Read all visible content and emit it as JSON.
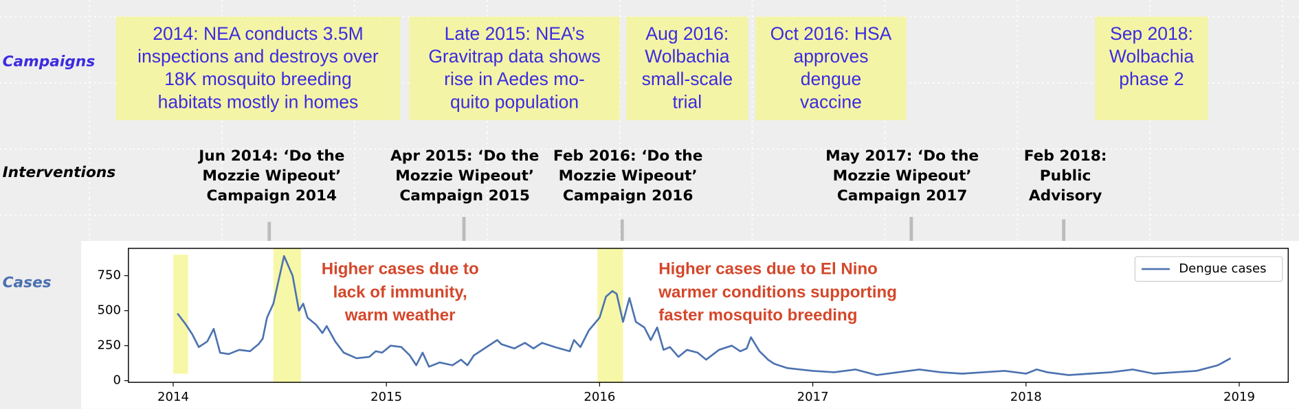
{
  "row_labels": {
    "campaigns": "Campaigns",
    "interventions": "Interventions",
    "cases": "Cases"
  },
  "campaigns": [
    {
      "lines": [
        "2014: NEA conducts 3.5M",
        "inspections and destroys over",
        "18K mosquito breeding",
        "habitats mostly in homes"
      ]
    },
    {
      "lines": [
        "Late 2015: NEA’s",
        "Gravitrap data shows",
        "rise in Aedes mo-",
        "quito population"
      ]
    },
    {
      "lines": [
        "Aug 2016:",
        "Wolbachia",
        "small-scale",
        "trial"
      ]
    },
    {
      "lines": [
        "Oct 2016: HSA",
        "approves",
        "dengue",
        "vaccine"
      ]
    },
    {
      "lines": [
        "Sep 2018:",
        "Wolbachia",
        "phase 2"
      ]
    }
  ],
  "interventions": [
    {
      "lines": [
        "Jun 2014: ‘Do the",
        "Mozzie Wipeout’",
        "Campaign 2014"
      ]
    },
    {
      "lines": [
        "Apr 2015: ‘Do the",
        "Mozzie Wipeout’",
        "Campaign 2015"
      ]
    },
    {
      "lines": [
        "Feb 2016: ‘Do the",
        "Mozzie Wipeout’",
        "Campaign 2016"
      ]
    },
    {
      "lines": [
        "May 2017: ‘Do the",
        "Mozzie Wipeout’",
        "Campaign 2017"
      ]
    },
    {
      "lines": [
        "Feb 2018:",
        "Public",
        "Advisory"
      ]
    }
  ],
  "chart_data": {
    "type": "line",
    "x": [
      2014.02,
      2014.06,
      2014.09,
      2014.12,
      2014.16,
      2014.19,
      2014.22,
      2014.26,
      2014.31,
      2014.36,
      2014.4,
      2014.42,
      2014.44,
      2014.47,
      2014.52,
      2014.56,
      2014.59,
      2014.61,
      2014.63,
      2014.67,
      2014.7,
      2014.72,
      2014.76,
      2014.8,
      2014.86,
      2014.92,
      2014.95,
      2014.98,
      2015.02,
      2015.07,
      2015.11,
      2015.14,
      2015.17,
      2015.2,
      2015.25,
      2015.31,
      2015.35,
      2015.38,
      2015.41,
      2015.46,
      2015.52,
      2015.54,
      2015.6,
      2015.65,
      2015.69,
      2015.73,
      2015.79,
      2015.86,
      2015.88,
      2015.91,
      2015.95,
      2016.0,
      2016.03,
      2016.06,
      2016.08,
      2016.11,
      2016.14,
      2016.17,
      2016.21,
      2016.24,
      2016.27,
      2016.3,
      2016.33,
      2016.37,
      2016.41,
      2016.46,
      2016.5,
      2016.56,
      2016.62,
      2016.66,
      2016.69,
      2016.71,
      2016.75,
      2016.79,
      2016.82,
      2016.88,
      2016.94,
      2017.0,
      2017.1,
      2017.2,
      2017.3,
      2017.4,
      2017.5,
      2017.6,
      2017.7,
      2017.8,
      2017.9,
      2018.0,
      2018.05,
      2018.1,
      2018.2,
      2018.3,
      2018.4,
      2018.5,
      2018.6,
      2018.7,
      2018.8,
      2018.9,
      2018.96
    ],
    "series": [
      {
        "name": "Dengue cases",
        "color": "#4c72b0",
        "values": [
          480,
          400,
          330,
          240,
          280,
          370,
          200,
          190,
          220,
          210,
          260,
          300,
          450,
          550,
          890,
          750,
          500,
          550,
          450,
          400,
          340,
          390,
          280,
          200,
          160,
          170,
          210,
          200,
          250,
          240,
          180,
          110,
          200,
          100,
          130,
          110,
          150,
          110,
          180,
          230,
          290,
          260,
          230,
          270,
          230,
          270,
          240,
          210,
          290,
          240,
          360,
          450,
          600,
          640,
          620,
          420,
          590,
          420,
          380,
          290,
          380,
          220,
          240,
          170,
          220,
          200,
          150,
          220,
          250,
          210,
          230,
          310,
          210,
          150,
          120,
          90,
          80,
          70,
          60,
          80,
          40,
          60,
          80,
          60,
          50,
          60,
          70,
          50,
          80,
          60,
          40,
          50,
          60,
          80,
          50,
          60,
          70,
          110,
          160
        ]
      }
    ],
    "xlim": [
      2013.79,
      2019.23
    ],
    "ylim": [
      -12,
      945
    ],
    "xticks": [
      2014,
      2015,
      2016,
      2017,
      2018,
      2019
    ],
    "yticks": [
      0,
      250,
      500,
      750
    ],
    "legend": "upper right",
    "highlights": [
      {
        "x": [
          2014.0,
          2014.07
        ],
        "y": [
          50,
          900
        ]
      },
      {
        "x": [
          2014.47,
          2014.6
        ]
      },
      {
        "x": [
          2015.99,
          2016.11
        ]
      }
    ],
    "highlight_color": "#f7f7a8",
    "annotation_color": "#d4472a",
    "annotations": [
      {
        "lines": [
          "Higher cases due to",
          "lack of immunity,",
          "warm weather"
        ]
      },
      {
        "lines": [
          "Higher cases due to El Nino",
          "warmer conditions supporting",
          "faster mosquito breeding"
        ]
      }
    ]
  }
}
